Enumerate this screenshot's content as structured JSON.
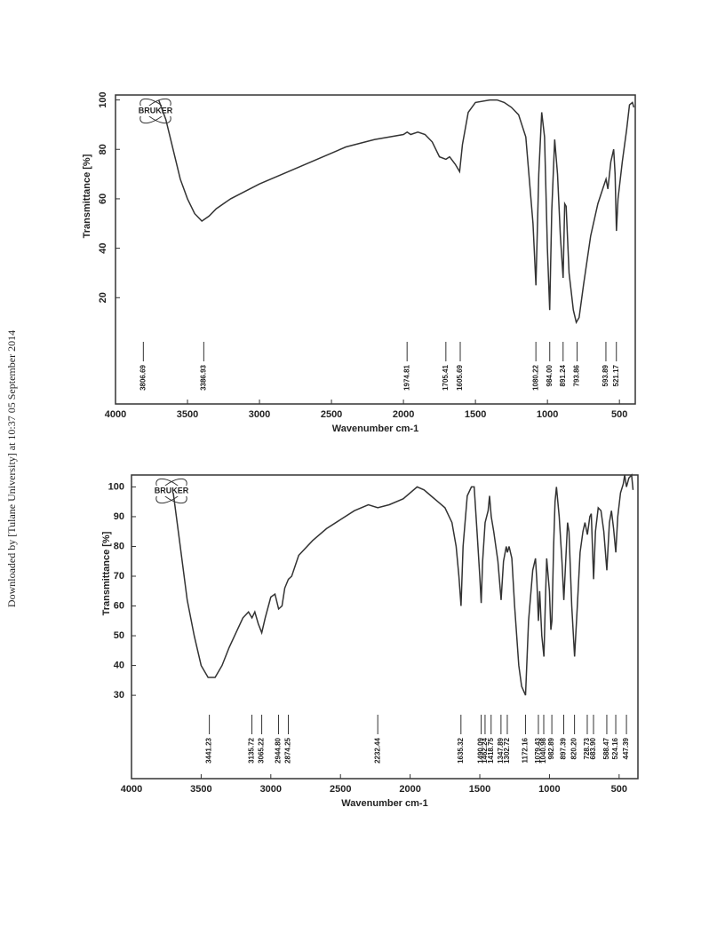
{
  "side_note": "Downloaded by [Tulane University] at 10:37 05 September 2014",
  "chart_data": [
    {
      "type": "line",
      "logo": "BRUKER",
      "x_label": "Wavenumber cm-1",
      "y_label": "Transmittance [%]",
      "color": "#333333",
      "xlim": [
        4000,
        390
      ],
      "ylim": [
        -23,
        102
      ],
      "xticks": [
        4000,
        3500,
        3000,
        2500,
        2000,
        1500,
        1000,
        500
      ],
      "yticks": [
        20,
        40,
        60,
        80,
        100
      ],
      "x": [
        3700,
        3650,
        3600,
        3550,
        3500,
        3450,
        3400,
        3350,
        3300,
        3200,
        3000,
        2800,
        2600,
        2400,
        2200,
        2000,
        1974,
        1950,
        1900,
        1850,
        1800,
        1750,
        1705,
        1680,
        1640,
        1610,
        1590,
        1550,
        1500,
        1400,
        1350,
        1300,
        1250,
        1200,
        1150,
        1100,
        1080,
        1060,
        1040,
        1020,
        1000,
        984,
        970,
        950,
        930,
        910,
        891,
        880,
        870,
        850,
        820,
        800,
        780,
        750,
        700,
        650,
        610,
        593,
        580,
        560,
        540,
        530,
        521,
        510,
        480,
        450,
        430,
        410,
        400
      ],
      "values": [
        100,
        92,
        80,
        68,
        60,
        54,
        51,
        53,
        56,
        60,
        66,
        71,
        76,
        81,
        84,
        86,
        87,
        86,
        87,
        86,
        83,
        77,
        76,
        77,
        74,
        71,
        82,
        95,
        99,
        100,
        100,
        99,
        97,
        94,
        85,
        50,
        25,
        70,
        95,
        85,
        40,
        15,
        55,
        84,
        70,
        45,
        28,
        58,
        57,
        30,
        15,
        10,
        12,
        25,
        45,
        58,
        65,
        68,
        64,
        75,
        80,
        70,
        47,
        60,
        75,
        88,
        98,
        99,
        97
      ],
      "peaks": [
        3806.69,
        3386.93,
        1974.81,
        1705.41,
        1605.69,
        1080.22,
        {
          "value": 984,
          "label": "984.00"
        },
        891.24,
        793.86,
        593.89,
        521.17
      ]
    },
    {
      "type": "line",
      "logo": "BRUKER",
      "x_label": "Wavenumber cm-1",
      "y_label": "Transmittance [%]",
      "color": "#333333",
      "xlim": [
        4000,
        365
      ],
      "ylim": [
        2,
        104
      ],
      "xticks": [
        4000,
        3500,
        3000,
        2500,
        2000,
        1500,
        1000,
        500
      ],
      "yticks": [
        30,
        40,
        50,
        60,
        70,
        80,
        90,
        100
      ],
      "x": [
        3700,
        3650,
        3600,
        3550,
        3500,
        3450,
        3400,
        3350,
        3300,
        3250,
        3200,
        3160,
        3135,
        3115,
        3090,
        3065,
        3040,
        3000,
        2970,
        2944,
        2920,
        2900,
        2874,
        2850,
        2800,
        2700,
        2600,
        2500,
        2400,
        2300,
        2232,
        2150,
        2050,
        1950,
        1900,
        1850,
        1800,
        1750,
        1700,
        1670,
        1650,
        1635,
        1620,
        1590,
        1560,
        1540,
        1520,
        1500,
        1490,
        1480,
        1462,
        1440,
        1430,
        1418,
        1400,
        1370,
        1347,
        1330,
        1310,
        1302,
        1290,
        1270,
        1250,
        1220,
        1200,
        1172,
        1150,
        1120,
        1100,
        1090,
        1079,
        1070,
        1055,
        1040,
        1030,
        1020,
        1000,
        990,
        982,
        970,
        960,
        950,
        930,
        910,
        897,
        880,
        870,
        860,
        840,
        820,
        800,
        780,
        760,
        745,
        728,
        710,
        700,
        683,
        670,
        650,
        630,
        610,
        588,
        570,
        555,
        540,
        524,
        510,
        490,
        470,
        460,
        447,
        430,
        410,
        400
      ],
      "values": [
        98,
        80,
        62,
        50,
        40,
        36,
        36,
        40,
        46,
        51,
        56,
        58,
        56,
        58,
        54,
        51,
        56,
        63,
        64,
        59,
        60,
        66,
        69,
        70,
        77,
        82,
        86,
        89,
        92,
        94,
        93,
        94,
        96,
        100,
        99,
        97,
        95,
        93,
        88,
        80,
        70,
        60,
        80,
        97,
        100,
        100,
        85,
        70,
        61,
        75,
        88,
        92,
        97,
        90,
        85,
        75,
        62,
        75,
        80,
        78,
        80,
        76,
        60,
        40,
        33,
        30,
        55,
        72,
        76,
        68,
        55,
        65,
        50,
        43,
        60,
        76,
        65,
        52,
        55,
        80,
        95,
        100,
        90,
        75,
        62,
        78,
        88,
        85,
        60,
        43,
        60,
        78,
        85,
        88,
        84,
        90,
        91,
        69,
        85,
        93,
        92,
        85,
        72,
        88,
        92,
        86,
        78,
        90,
        98,
        101,
        104,
        100,
        103,
        104,
        99
      ],
      "peaks": [
        3441.23,
        3135.72,
        3065.22,
        {
          "value": 2944.8,
          "label": "2944.80"
        },
        2874.25,
        2232.44,
        1635.32,
        1490.09,
        1462.24,
        1418.75,
        1347.89,
        1302.72,
        1172.16,
        1079.43,
        1040.98,
        982.89,
        897.39,
        {
          "value": 820.2,
          "label": "820.20"
        },
        728.73,
        {
          "value": 683.9,
          "label": "683.90"
        },
        588.47,
        524.16,
        447.39
      ]
    }
  ]
}
